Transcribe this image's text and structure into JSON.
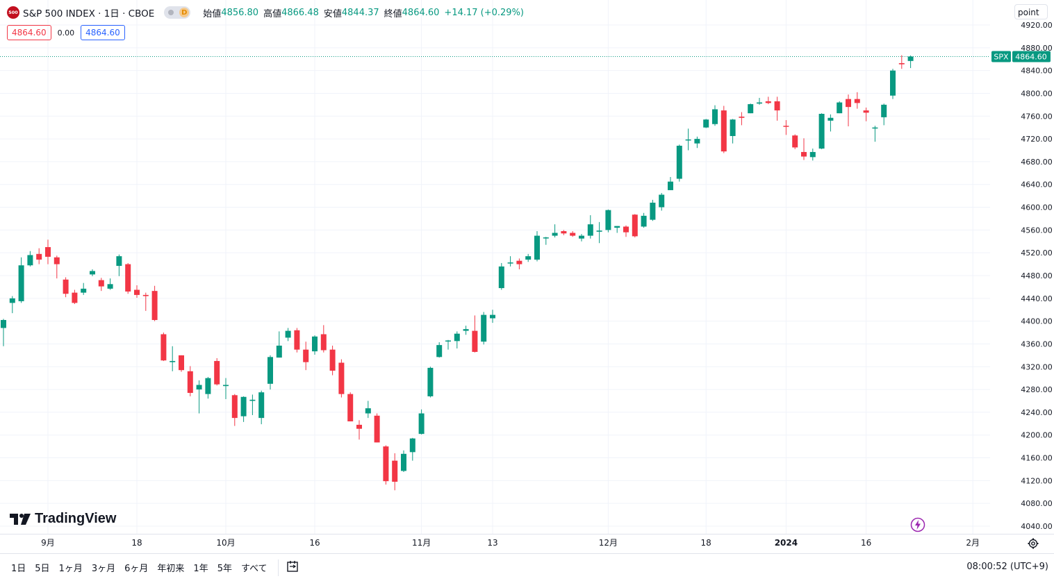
{
  "header": {
    "symbol_badge": "500",
    "title": "S&P 500 INDEX · 1日 · CBOE",
    "badge_letter": "D",
    "open_label": "始値",
    "open_value": "4856.80",
    "high_label": "高値",
    "high_value": "4866.48",
    "low_label": "安値",
    "low_value": "4844.37",
    "close_label": "終値",
    "close_value": "4864.60",
    "change": "+14.17 (+0.29%)",
    "sell_price": "4864.60",
    "spread": "0.00",
    "buy_price": "4864.60",
    "point_button": "point"
  },
  "price_marker": {
    "symbol": "SPX",
    "value": "4864.60"
  },
  "logo_text": "TradingView",
  "toolbar": {
    "ranges": [
      "1日",
      "5日",
      "1ヶ月",
      "3ヶ月",
      "6ヶ月",
      "年初来",
      "1年",
      "5年",
      "すべて"
    ],
    "clock": "08:00:52 (UTC+9)"
  },
  "colors": {
    "up": "#089981",
    "down": "#f23645",
    "grid": "#f0f3fa",
    "text": "#131722"
  },
  "icons": [
    "settings-gear-icon",
    "compare-calendar-icon",
    "lightning-icon"
  ],
  "chart_data": {
    "type": "candlestick",
    "ylim": [
      4020,
      4930
    ],
    "y_ticks": [
      4040,
      4080,
      4120,
      4160,
      4200,
      4240,
      4280,
      4320,
      4360,
      4400,
      4440,
      4480,
      4520,
      4560,
      4600,
      4640,
      4680,
      4720,
      4760,
      4800,
      4840,
      4880,
      4920
    ],
    "y_tick_labels": [
      "4040.00",
      "4080.00",
      "4120.00",
      "4160.00",
      "4200.00",
      "4240.00",
      "4280.00",
      "4320.00",
      "4360.00",
      "4400.00",
      "4440.00",
      "4480.00",
      "4520.00",
      "4560.00",
      "4600.00",
      "4640.00",
      "4680.00",
      "4720.00",
      "4760.00",
      "4800.00",
      "4840.00",
      "4880.00",
      "4920.00"
    ],
    "x_ticks": [
      {
        "label": "9月",
        "index": 5,
        "bold": false
      },
      {
        "label": "18",
        "index": 15,
        "bold": false
      },
      {
        "label": "10月",
        "index": 25,
        "bold": false
      },
      {
        "label": "16",
        "index": 35,
        "bold": false
      },
      {
        "label": "11月",
        "index": 47,
        "bold": false
      },
      {
        "label": "13",
        "index": 55,
        "bold": false
      },
      {
        "label": "12月",
        "index": 68,
        "bold": false
      },
      {
        "label": "18",
        "index": 79,
        "bold": false
      },
      {
        "label": "2024",
        "index": 88,
        "bold": true
      },
      {
        "label": "16",
        "index": 97,
        "bold": false
      },
      {
        "label": "2月",
        "index": 109,
        "bold": false
      }
    ],
    "candles": [
      [
        4388,
        4402,
        4356,
        4404
      ],
      [
        4432,
        4440,
        4414,
        4444
      ],
      [
        4435,
        4498,
        4432,
        4512
      ],
      [
        4498,
        4516,
        4496,
        4523
      ],
      [
        4518,
        4508,
        4500,
        4528
      ],
      [
        4530,
        4513,
        4500,
        4543
      ],
      [
        4512,
        4500,
        4475,
        4515
      ],
      [
        4473,
        4448,
        4442,
        4477
      ],
      [
        4450,
        4432,
        4430,
        4455
      ],
      [
        4450,
        4457,
        4446,
        4467
      ],
      [
        4482,
        4488,
        4479,
        4491
      ],
      [
        4472,
        4461,
        4453,
        4476
      ],
      [
        4457,
        4465,
        4455,
        4475
      ],
      [
        4497,
        4514,
        4479,
        4517
      ],
      [
        4500,
        4452,
        4448,
        4502
      ],
      [
        4455,
        4446,
        4441,
        4463
      ],
      [
        4446,
        4444,
        4418,
        4450
      ],
      [
        4453,
        4402,
        4400,
        4462
      ],
      [
        4377,
        4331,
        4330,
        4380
      ],
      [
        4328,
        4330,
        4312,
        4356
      ],
      [
        4340,
        4314,
        4311,
        4340
      ],
      [
        4312,
        4274,
        4268,
        4321
      ],
      [
        4280,
        4288,
        4238,
        4296
      ],
      [
        4272,
        4300,
        4264,
        4302
      ],
      [
        4330,
        4289,
        4287,
        4335
      ],
      [
        4286,
        4288,
        4263,
        4300
      ],
      [
        4270,
        4230,
        4216,
        4272
      ],
      [
        4233,
        4267,
        4223,
        4268
      ],
      [
        4260,
        4262,
        4235,
        4271
      ],
      [
        4230,
        4275,
        4219,
        4278
      ],
      [
        4290,
        4337,
        4280,
        4340
      ],
      [
        4336,
        4357,
        4336,
        4382
      ],
      [
        4371,
        4383,
        4365,
        4388
      ],
      [
        4384,
        4350,
        4345,
        4388
      ],
      [
        4350,
        4328,
        4314,
        4364
      ],
      [
        4347,
        4373,
        4341,
        4375
      ],
      [
        4377,
        4349,
        4345,
        4393
      ],
      [
        4350,
        4313,
        4305,
        4357
      ],
      [
        4327,
        4272,
        4266,
        4333
      ],
      [
        4272,
        4224,
        4224,
        4275
      ],
      [
        4218,
        4211,
        4192,
        4226
      ],
      [
        4238,
        4247,
        4230,
        4260
      ],
      [
        4234,
        4187,
        4187,
        4238
      ],
      [
        4180,
        4119,
        4113,
        4182
      ],
      [
        4155,
        4118,
        4103,
        4168
      ],
      [
        4137,
        4167,
        4135,
        4173
      ],
      [
        4170,
        4194,
        4155,
        4195
      ],
      [
        4202,
        4238,
        4201,
        4245
      ],
      [
        4268,
        4318,
        4266,
        4320
      ],
      [
        4337,
        4358,
        4336,
        4363
      ],
      [
        4365,
        4366,
        4350,
        4367
      ],
      [
        4365,
        4378,
        4352,
        4382
      ],
      [
        4383,
        4386,
        4376,
        4392
      ],
      [
        4383,
        4346,
        4345,
        4410
      ],
      [
        4364,
        4411,
        4359,
        4416
      ],
      [
        4405,
        4411,
        4397,
        4420
      ],
      [
        4458,
        4496,
        4455,
        4502
      ],
      [
        4503,
        4503,
        4496,
        4514
      ],
      [
        4506,
        4500,
        4491,
        4510
      ],
      [
        4508,
        4514,
        4504,
        4518
      ],
      [
        4508,
        4550,
        4505,
        4558
      ],
      [
        4547,
        4547,
        4534,
        4548
      ],
      [
        4550,
        4555,
        4547,
        4570
      ],
      [
        4558,
        4554,
        4551,
        4560
      ],
      [
        4555,
        4550,
        4548,
        4558
      ],
      [
        4545,
        4550,
        4540,
        4553
      ],
      [
        4550,
        4570,
        4545,
        4586
      ],
      [
        4557,
        4559,
        4537,
        4574
      ],
      [
        4560,
        4595,
        4556,
        4596
      ],
      [
        4564,
        4567,
        4555,
        4567
      ],
      [
        4566,
        4556,
        4548,
        4568
      ],
      [
        4587,
        4549,
        4547,
        4588
      ],
      [
        4566,
        4585,
        4564,
        4590
      ],
      [
        4578,
        4608,
        4576,
        4613
      ],
      [
        4600,
        4622,
        4594,
        4625
      ],
      [
        4630,
        4645,
        4630,
        4653
      ],
      [
        4650,
        4708,
        4645,
        4710
      ],
      [
        4718,
        4719,
        4700,
        4738
      ],
      [
        4712,
        4720,
        4704,
        4724
      ],
      [
        4740,
        4754,
        4739,
        4755
      ],
      [
        4746,
        4772,
        4743,
        4779
      ],
      [
        4770,
        4698,
        4695,
        4778
      ],
      [
        4725,
        4754,
        4712,
        4755
      ],
      [
        4759,
        4757,
        4744,
        4767
      ],
      [
        4765,
        4781,
        4765,
        4782
      ],
      [
        4782,
        4784,
        4780,
        4792
      ],
      [
        4786,
        4783,
        4781,
        4794
      ],
      [
        4786,
        4770,
        4752,
        4794
      ],
      [
        4743,
        4742,
        4727,
        4753
      ],
      [
        4726,
        4705,
        4702,
        4728
      ],
      [
        4697,
        4689,
        4683,
        4721
      ],
      [
        4688,
        4697,
        4682,
        4703
      ],
      [
        4703,
        4764,
        4702,
        4765
      ],
      [
        4752,
        4757,
        4733,
        4763
      ],
      [
        4765,
        4784,
        4765,
        4786
      ],
      [
        4790,
        4776,
        4742,
        4798
      ],
      [
        4790,
        4783,
        4773,
        4802
      ],
      [
        4770,
        4766,
        4751,
        4775
      ],
      [
        4740,
        4740,
        4715,
        4743
      ],
      [
        4758,
        4780,
        4744,
        4782
      ],
      [
        4796,
        4840,
        4790,
        4843
      ],
      [
        4853,
        4851,
        4843,
        4867
      ],
      [
        4856.8,
        4864.6,
        4844.37,
        4866.48
      ]
    ]
  }
}
